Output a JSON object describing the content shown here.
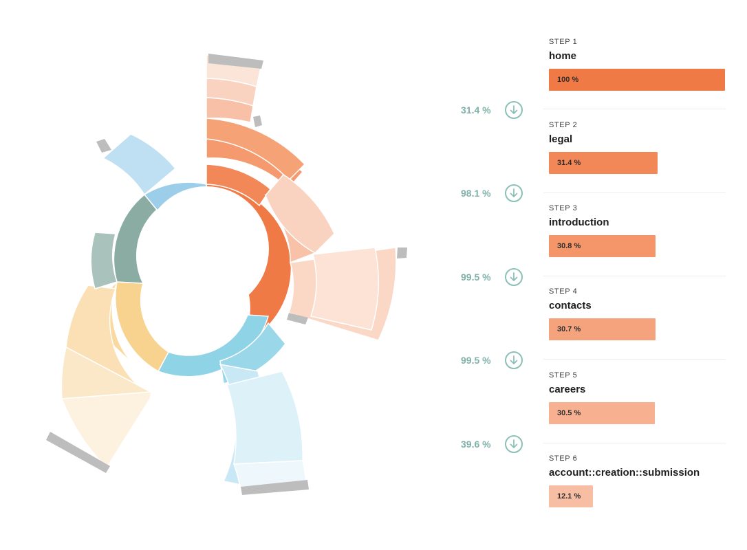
{
  "funnel": {
    "steps": [
      {
        "label": "STEP 1",
        "name": "home",
        "percent_label": "100 %",
        "percent": 100,
        "color": "#f07a45"
      },
      {
        "label": "STEP 2",
        "name": "legal",
        "percent_label": "31.4 %",
        "percent": 31.4,
        "color": "#f28858"
      },
      {
        "label": "STEP 3",
        "name": "introduction",
        "percent_label": "30.8 %",
        "percent": 30.8,
        "color": "#f49669"
      },
      {
        "label": "STEP 4",
        "name": "contacts",
        "percent_label": "30.7 %",
        "percent": 30.7,
        "color": "#f5a37d"
      },
      {
        "label": "STEP 5",
        "name": "careers",
        "percent_label": "30.5 %",
        "percent": 30.5,
        "color": "#f7b190"
      },
      {
        "label": "STEP 6",
        "name": "account::creation::submission",
        "percent_label": "12.1 %",
        "percent": 12.1,
        "color": "#f8bea3"
      }
    ],
    "conversions": [
      {
        "value": "31.4 %"
      },
      {
        "value": "98.1 %"
      },
      {
        "value": "99.5 %"
      },
      {
        "value": "99.5 %"
      },
      {
        "value": "39.6 %"
      }
    ],
    "conversion_icon": "arrow-down-circle-icon",
    "accent_color": "#8cc0b7"
  },
  "sunburst": {
    "segments": [
      {
        "name": "orange",
        "color": "#f07a45",
        "start": 0,
        "end": 140
      },
      {
        "name": "blue",
        "color": "#8fd3e6",
        "start": 140,
        "end": 215
      },
      {
        "name": "yellow",
        "color": "#f8d28f",
        "start": 215,
        "end": 275
      },
      {
        "name": "teal",
        "color": "#8aaca2",
        "start": 275,
        "end": 320
      },
      {
        "name": "light-blue",
        "color": "#9ccde9",
        "start": 320,
        "end": 360
      }
    ]
  }
}
